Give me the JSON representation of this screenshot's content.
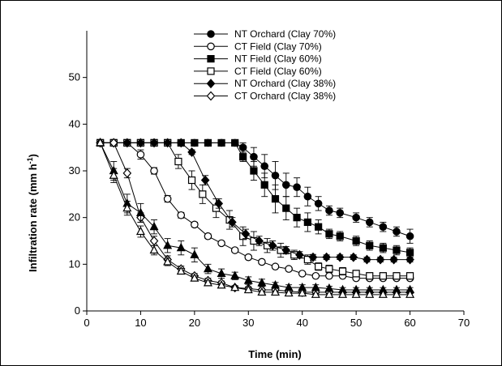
{
  "chart_data": {
    "type": "line",
    "title": "",
    "xlabel": "Time (min)",
    "ylabel": "Infiltration rate (mm h",
    "ylabel_sup": "-1",
    "ylabel_close": ")",
    "xlim": [
      0,
      70
    ],
    "ylim": [
      0,
      55
    ],
    "xticks": [
      0,
      10,
      20,
      30,
      40,
      50,
      60,
      70
    ],
    "yticks": [
      0,
      10,
      20,
      30,
      40,
      50
    ],
    "grid": false,
    "legend_position": "top-center",
    "series": [
      {
        "name": "NT Orchard (Clay 70%)",
        "marker": "circle",
        "filled": true,
        "points": [
          [
            2.5,
            36
          ],
          [
            5,
            36
          ],
          [
            7.5,
            36
          ],
          [
            10,
            36
          ],
          [
            12.5,
            36
          ],
          [
            15,
            36
          ],
          [
            17.5,
            36
          ],
          [
            20,
            36
          ],
          [
            22.5,
            36
          ],
          [
            25,
            36
          ],
          [
            27.5,
            36
          ],
          [
            29,
            35
          ],
          [
            31,
            33
          ],
          [
            33,
            31
          ],
          [
            35,
            29
          ],
          [
            37,
            27
          ],
          [
            39,
            26.5
          ],
          [
            41,
            24.5
          ],
          [
            43,
            23
          ],
          [
            45,
            21.5
          ],
          [
            47,
            21
          ],
          [
            50,
            20
          ],
          [
            52.5,
            19
          ],
          [
            55,
            18
          ],
          [
            57.5,
            17
          ],
          [
            60,
            16
          ]
        ],
        "errors": [
          0,
          0,
          0,
          0,
          0,
          0,
          0,
          0,
          0,
          0,
          0,
          1,
          2,
          2.5,
          3,
          2.5,
          2,
          2,
          1.5,
          1,
          1,
          1,
          1,
          1,
          1,
          1.5
        ]
      },
      {
        "name": "CT Field (Clay 70%)",
        "marker": "circle",
        "filled": false,
        "points": [
          [
            2.5,
            36
          ],
          [
            5,
            36
          ],
          [
            7.5,
            36
          ],
          [
            10,
            33.5
          ],
          [
            12.5,
            30
          ],
          [
            15,
            24
          ],
          [
            17.5,
            20.5
          ],
          [
            20,
            18.5
          ],
          [
            22.5,
            16
          ],
          [
            25,
            14.5
          ],
          [
            27.5,
            13
          ],
          [
            30,
            11.5
          ],
          [
            32.5,
            10.5
          ],
          [
            35,
            9.5
          ],
          [
            37.5,
            9
          ],
          [
            40,
            8
          ],
          [
            42.5,
            7.5
          ],
          [
            45,
            7.5
          ],
          [
            47.5,
            7.5
          ],
          [
            50,
            7
          ],
          [
            52.5,
            7
          ],
          [
            55,
            7
          ],
          [
            57.5,
            7
          ],
          [
            60,
            7
          ]
        ],
        "errors": [
          0,
          0,
          0,
          1,
          0.7,
          0.7,
          0.6,
          0.5,
          0.5,
          0.4,
          0.4,
          0.4,
          0.4,
          0.4,
          0.3,
          0.3,
          0.3,
          0.3,
          0.3,
          0.3,
          0.3,
          0.3,
          0.3,
          0.3
        ]
      },
      {
        "name": "NT Field (Clay 60%)",
        "marker": "square",
        "filled": true,
        "points": [
          [
            2.5,
            36
          ],
          [
            5,
            36
          ],
          [
            7.5,
            36
          ],
          [
            10,
            36
          ],
          [
            12.5,
            36
          ],
          [
            15,
            36
          ],
          [
            17.5,
            36
          ],
          [
            20,
            36
          ],
          [
            22.5,
            36
          ],
          [
            25,
            36
          ],
          [
            27.5,
            36
          ],
          [
            29,
            33
          ],
          [
            31,
            30
          ],
          [
            33,
            27
          ],
          [
            35,
            24
          ],
          [
            37,
            22
          ],
          [
            39,
            20
          ],
          [
            41,
            19
          ],
          [
            43,
            18
          ],
          [
            45,
            16.5
          ],
          [
            47,
            16
          ],
          [
            50,
            15
          ],
          [
            52.5,
            14
          ],
          [
            55,
            13.5
          ],
          [
            57.5,
            13
          ],
          [
            60,
            12.5
          ]
        ],
        "errors": [
          0,
          0,
          0,
          0,
          0,
          0,
          0,
          0,
          0,
          0,
          0,
          1,
          2,
          2.5,
          3,
          2.5,
          2,
          2,
          1.5,
          1,
          1,
          1,
          1,
          1,
          1,
          1
        ]
      },
      {
        "name": "CT Field (Clay 60%)",
        "marker": "square",
        "filled": false,
        "points": [
          [
            2.5,
            36
          ],
          [
            5,
            36
          ],
          [
            7.5,
            36
          ],
          [
            10,
            36
          ],
          [
            12.5,
            36
          ],
          [
            15,
            36
          ],
          [
            17,
            32
          ],
          [
            19.5,
            28
          ],
          [
            21.5,
            25
          ],
          [
            24,
            22
          ],
          [
            26.5,
            19.5
          ],
          [
            29,
            16
          ],
          [
            31,
            15
          ],
          [
            33.5,
            14
          ],
          [
            36,
            13
          ],
          [
            38.5,
            12
          ],
          [
            41,
            11
          ],
          [
            43,
            9.5
          ],
          [
            45,
            9
          ],
          [
            47.5,
            8.5
          ],
          [
            50,
            8
          ],
          [
            52.5,
            7.5
          ],
          [
            55,
            7.5
          ],
          [
            57.5,
            7.5
          ],
          [
            60,
            7.5
          ]
        ],
        "errors": [
          0,
          0,
          0,
          0,
          0,
          0,
          1.5,
          2,
          2,
          2,
          2,
          2,
          2,
          1.5,
          1.5,
          1,
          1,
          0.8,
          0.8,
          0.8,
          0.7,
          0.7,
          0.7,
          0.7,
          0.7
        ]
      },
      {
        "name": "NT Orchard (Clay 38%)",
        "marker": "diamond",
        "filled": true,
        "points": [
          [
            2.5,
            36
          ],
          [
            5,
            36
          ],
          [
            7.5,
            36
          ],
          [
            10,
            36
          ],
          [
            12.5,
            36
          ],
          [
            15,
            36
          ],
          [
            17.5,
            36
          ],
          [
            19.5,
            34
          ],
          [
            22,
            28
          ],
          [
            24.5,
            23
          ],
          [
            27,
            19
          ],
          [
            29.5,
            16.5
          ],
          [
            32,
            15
          ],
          [
            34.5,
            14
          ],
          [
            37,
            13
          ],
          [
            39.5,
            12
          ],
          [
            42,
            11.5
          ],
          [
            44.5,
            11.5
          ],
          [
            47,
            11.5
          ],
          [
            49.5,
            11.5
          ],
          [
            52,
            11
          ],
          [
            54.5,
            11
          ],
          [
            57,
            11
          ],
          [
            60,
            11
          ]
        ],
        "errors": [
          0,
          0,
          0,
          0,
          0,
          0,
          0,
          0.5,
          1,
          1,
          1,
          1,
          1,
          1,
          0.8,
          0.7,
          0.6,
          0.5,
          0.5,
          0.5,
          0.5,
          0.5,
          0.5,
          0.5
        ]
      },
      {
        "name": "CT Orchard (Clay 38%)",
        "marker": "diamond",
        "filled": false,
        "points": [
          [
            2.5,
            36
          ],
          [
            5,
            36
          ],
          [
            7.5,
            29.5
          ],
          [
            10,
            20
          ],
          [
            12.5,
            15
          ],
          [
            15,
            11
          ],
          [
            17.5,
            9
          ],
          [
            20,
            7.5
          ],
          [
            22.5,
            6.5
          ],
          [
            25,
            6
          ],
          [
            27.5,
            5
          ],
          [
            30,
            4.8
          ],
          [
            32.5,
            4.5
          ],
          [
            35,
            4.5
          ],
          [
            37.5,
            4.2
          ],
          [
            40,
            4
          ],
          [
            42.5,
            4
          ],
          [
            45,
            4
          ],
          [
            47.5,
            4
          ],
          [
            50,
            4
          ],
          [
            52.5,
            4
          ],
          [
            55,
            4
          ],
          [
            57.5,
            4
          ],
          [
            60,
            4
          ]
        ],
        "errors": [
          0,
          0,
          1,
          1,
          1,
          0.8,
          0.6,
          0.5,
          0.5,
          0.4,
          0.4,
          0.4,
          0.3,
          0.3,
          0.3,
          0.3,
          0.3,
          0.3,
          0.3,
          0.3,
          0.3,
          0.3,
          0.3,
          0.3
        ]
      },
      {
        "name": "",
        "marker": "triangle",
        "filled": true,
        "points": [
          [
            2.5,
            36
          ],
          [
            5,
            30
          ],
          [
            7.5,
            23
          ],
          [
            10,
            21
          ],
          [
            12.5,
            18
          ],
          [
            15,
            14
          ],
          [
            17.5,
            13.5
          ],
          [
            20,
            12
          ],
          [
            22.5,
            9
          ],
          [
            25,
            8
          ],
          [
            27.5,
            7.5
          ],
          [
            30,
            6.5
          ],
          [
            32.5,
            6
          ],
          [
            35,
            5.5
          ],
          [
            37.5,
            5
          ],
          [
            40,
            5
          ],
          [
            42.5,
            5
          ],
          [
            45,
            4.8
          ],
          [
            47.5,
            4.5
          ],
          [
            50,
            4.5
          ],
          [
            52.5,
            4.5
          ],
          [
            55,
            4.5
          ],
          [
            57.5,
            4.5
          ],
          [
            60,
            4.5
          ]
        ],
        "errors": [
          0,
          2,
          2,
          2,
          1.5,
          1.5,
          1.5,
          1.5,
          1,
          1,
          0.8,
          0.8,
          0.8,
          0.6,
          0.6,
          0.6,
          0.6,
          0.5,
          0.5,
          0.5,
          0.5,
          0.5,
          0.5,
          0.5
        ]
      },
      {
        "name": "",
        "marker": "triangle",
        "filled": false,
        "points": [
          [
            2.5,
            36
          ],
          [
            5,
            29
          ],
          [
            7.5,
            22
          ],
          [
            10,
            17
          ],
          [
            12.5,
            13
          ],
          [
            15,
            10.5
          ],
          [
            17.5,
            8.5
          ],
          [
            20,
            7
          ],
          [
            22.5,
            6
          ],
          [
            25,
            5.5
          ],
          [
            27.5,
            5
          ],
          [
            30,
            4.5
          ],
          [
            32.5,
            4
          ],
          [
            35,
            4
          ],
          [
            37.5,
            3.8
          ],
          [
            40,
            3.8
          ],
          [
            42.5,
            3.5
          ],
          [
            45,
            3.5
          ],
          [
            47.5,
            3.5
          ],
          [
            50,
            3.5
          ],
          [
            52.5,
            3.5
          ],
          [
            55,
            3.5
          ],
          [
            57.5,
            3.5
          ],
          [
            60,
            3.5
          ]
        ],
        "errors": [
          0,
          1.5,
          1.5,
          1.2,
          1,
          0.8,
          0.6,
          0.5,
          0.5,
          0.4,
          0.4,
          0.4,
          0.3,
          0.3,
          0.3,
          0.3,
          0.3,
          0.3,
          0.3,
          0.3,
          0.3,
          0.3,
          0.3,
          0.3
        ]
      }
    ]
  }
}
